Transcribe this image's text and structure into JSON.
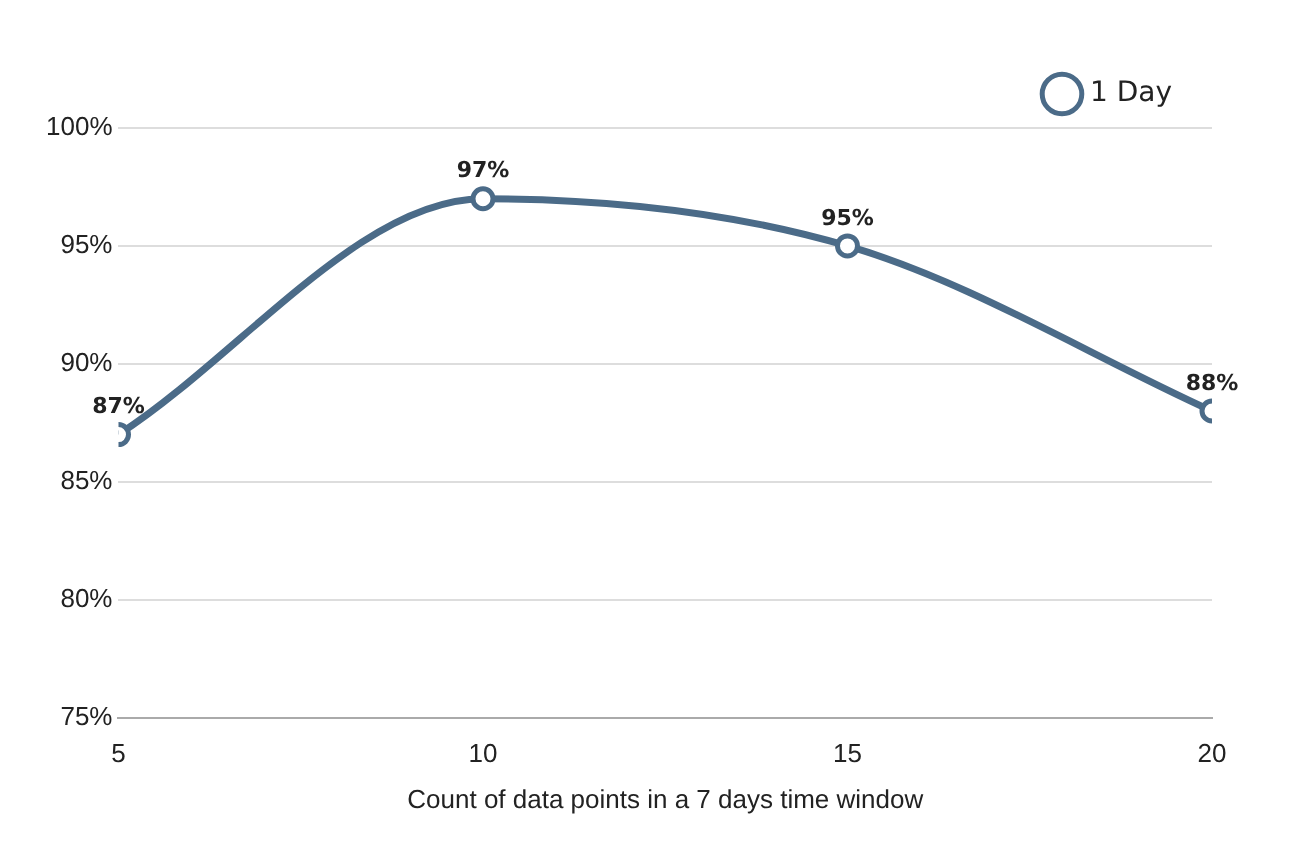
{
  "chart_data": {
    "type": "line",
    "xlabel": "Count of data points in a 7 days time window",
    "x": [
      5,
      10,
      15,
      20
    ],
    "xlim": [
      5,
      20
    ],
    "xticks": [
      5,
      10,
      15,
      20
    ],
    "ylim": [
      75,
      100
    ],
    "yticks": [
      {
        "value": 75,
        "label": "75%"
      },
      {
        "value": 80,
        "label": "80%"
      },
      {
        "value": 85,
        "label": "85%"
      },
      {
        "value": 90,
        "label": "90%"
      },
      {
        "value": 95,
        "label": "95%"
      },
      {
        "value": 100,
        "label": "100%"
      }
    ],
    "series": [
      {
        "name": "1 Day",
        "color": "#4b6b88",
        "values": [
          87,
          97,
          95,
          88
        ],
        "value_labels": [
          "87%",
          "97%",
          "95%",
          "88%"
        ]
      }
    ],
    "grid": "y",
    "legend": "top right",
    "marker": "circle",
    "line_style": "solid"
  }
}
